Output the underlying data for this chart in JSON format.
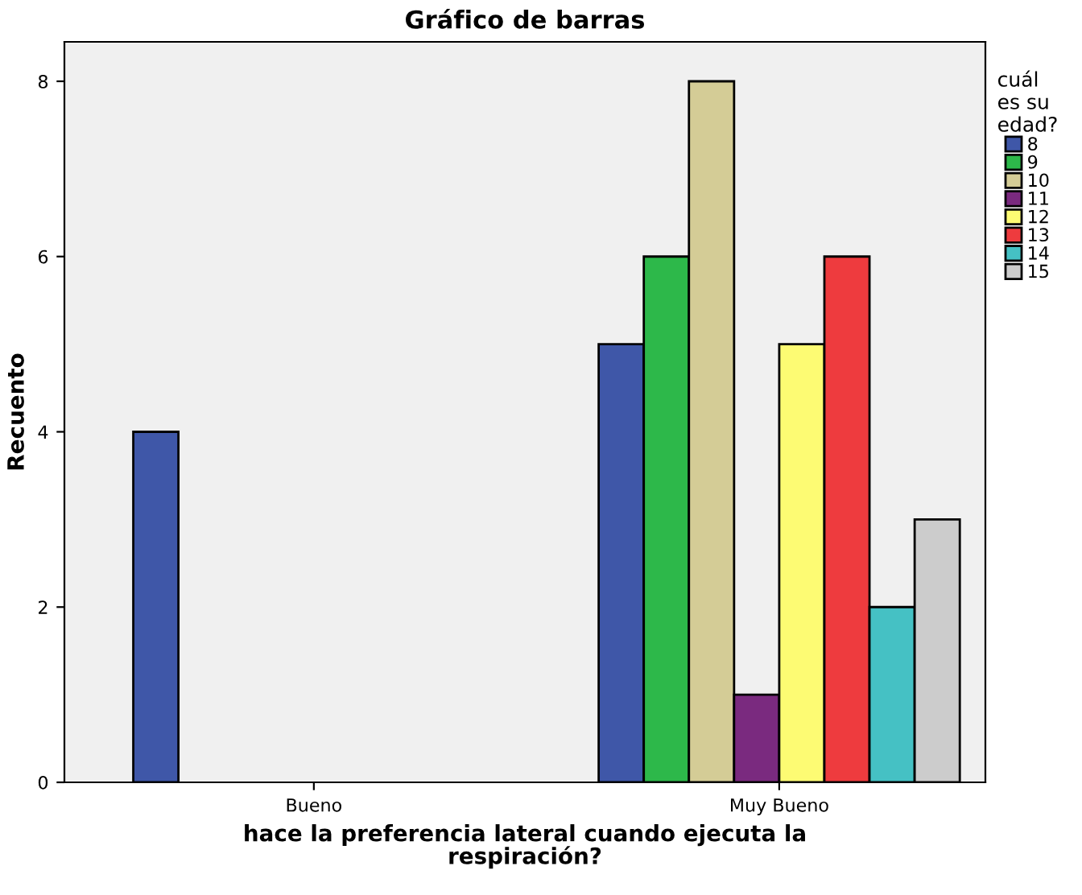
{
  "chart_data": {
    "type": "bar",
    "title": "Gráfico de barras",
    "xlabel": "hace la preferencia lateral cuando ejecuta la\nrespiración?",
    "ylabel": "Recuento",
    "legend_title": "cuál\nes su\nedad?",
    "categories": [
      "Bueno",
      "Muy Bueno"
    ],
    "series": [
      {
        "name": "8",
        "color": "#3f57a8",
        "values": [
          4,
          5
        ]
      },
      {
        "name": "9",
        "color": "#2db84a",
        "values": [
          null,
          6
        ]
      },
      {
        "name": "10",
        "color": "#d4cc96",
        "values": [
          null,
          8
        ]
      },
      {
        "name": "11",
        "color": "#7a2a7f",
        "values": [
          null,
          1
        ]
      },
      {
        "name": "12",
        "color": "#fdfb73",
        "values": [
          null,
          5
        ]
      },
      {
        "name": "13",
        "color": "#ee3b3e",
        "values": [
          null,
          6
        ]
      },
      {
        "name": "14",
        "color": "#45c1c4",
        "values": [
          null,
          2
        ]
      },
      {
        "name": "15",
        "color": "#cccccc",
        "values": [
          null,
          3
        ]
      }
    ],
    "ylim": [
      0,
      8.45
    ],
    "yticks": [
      0,
      2,
      4,
      6,
      8
    ],
    "grid": false,
    "legend": "right"
  }
}
